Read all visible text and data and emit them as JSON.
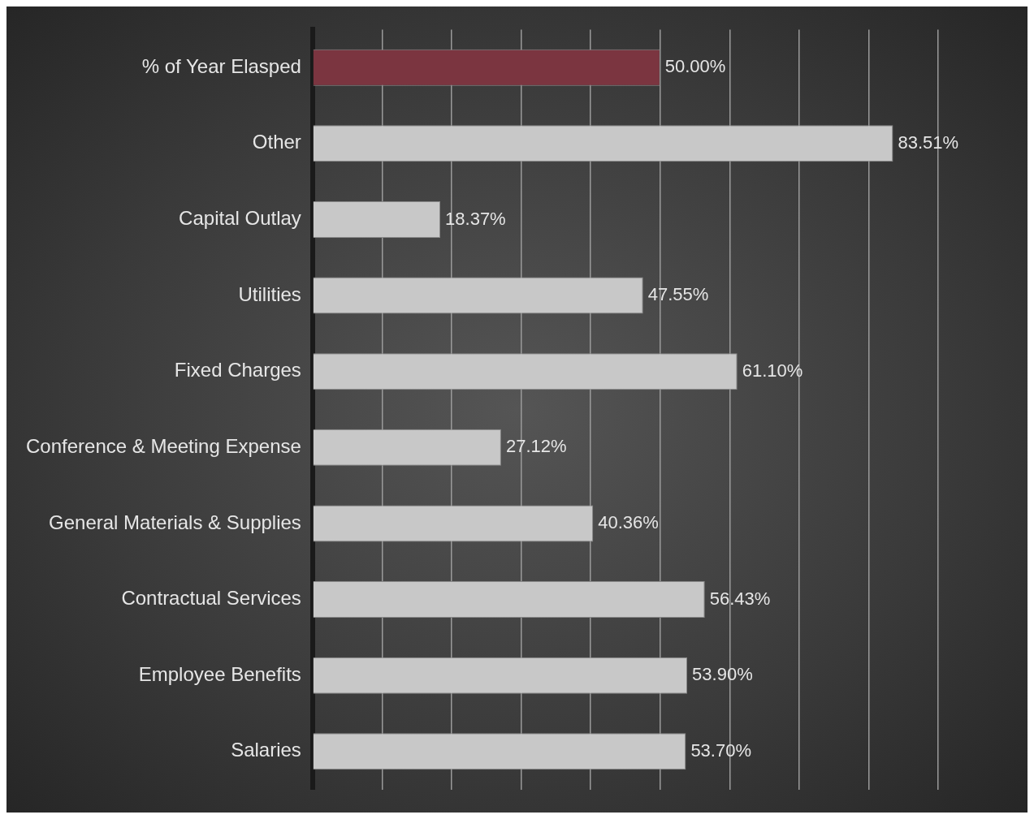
{
  "chart_data": {
    "type": "bar",
    "orientation": "horizontal",
    "categories": [
      "% of Year Elasped",
      "Other",
      "Capital Outlay",
      "Utilities",
      "Fixed Charges",
      "Conference & Meeting Expense",
      "General Materials & Supplies",
      "Contractual Services",
      "Employee Benefits",
      "Salaries"
    ],
    "values": [
      50.0,
      83.51,
      18.37,
      47.55,
      61.1,
      27.12,
      40.36,
      56.43,
      53.9,
      53.7
    ],
    "colors": [
      "#7b3540",
      "#c8c8c8",
      "#c8c8c8",
      "#c8c8c8",
      "#c8c8c8",
      "#c8c8c8",
      "#c8c8c8",
      "#c8c8c8",
      "#c8c8c8",
      "#c8c8c8"
    ],
    "value_labels": [
      "50.00%",
      "83.51%",
      "18.37%",
      "47.55%",
      "61.10%",
      "27.12%",
      "40.36%",
      "56.43%",
      "53.90%",
      "53.70%"
    ],
    "xlim": [
      0,
      90
    ],
    "xticks": [
      {
        "value": 0,
        "label": null
      },
      {
        "value": 10,
        "label": null
      },
      {
        "value": 20,
        "label": null
      },
      {
        "value": 30,
        "label": null
      },
      {
        "value": 40,
        "label": null
      },
      {
        "value": 50,
        "label": null
      },
      {
        "value": 60,
        "label": null
      },
      {
        "value": 70,
        "label": null
      },
      {
        "value": 80,
        "label": null
      },
      {
        "value": 90,
        "label": null
      }
    ],
    "grid": "x",
    "tick_labels": "y",
    "legend": false
  }
}
